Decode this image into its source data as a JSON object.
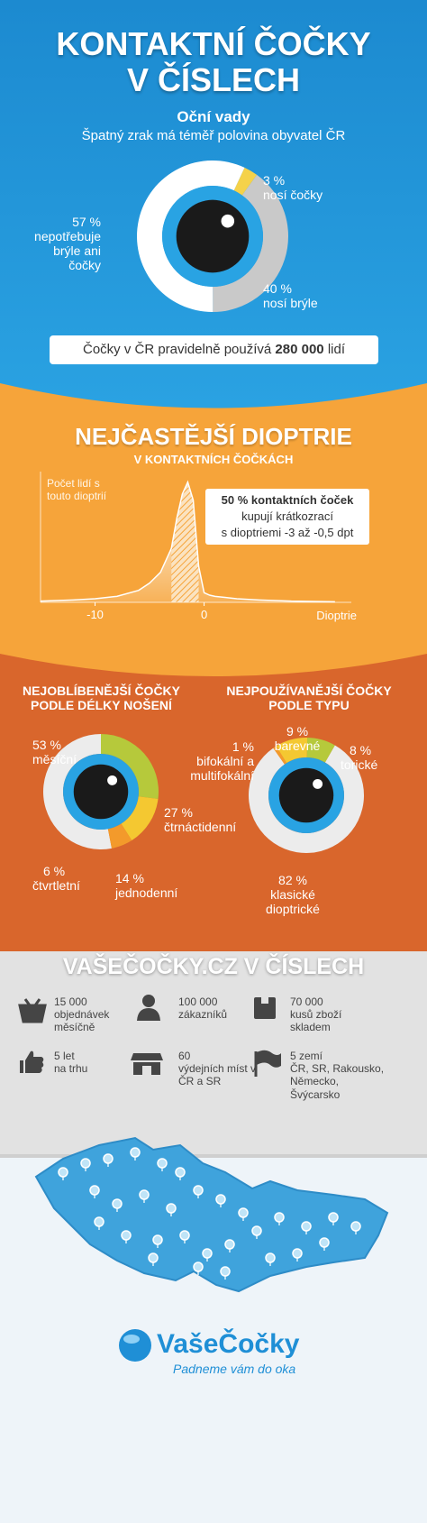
{
  "header": {
    "title_line1": "KONTAKTNÍ ČOČKY",
    "title_line2": "V ČÍSLECH"
  },
  "callout": {
    "before": "Čočky v ČR pravidelně používá",
    "number": "280 000",
    "after": "lidí"
  },
  "chart_data": [
    {
      "type": "pie",
      "title": "Oční vady",
      "subtitle": "Špatný zrak má téměř polovina obyvatel ČR",
      "categories": [
        "nosí čočky",
        "nosí brýle",
        "nepotřebuje brýle ani čočky"
      ],
      "values": [
        3,
        40,
        57
      ],
      "value_labels": [
        "3 %",
        "40 %",
        "57 %"
      ],
      "colors": [
        "#f5d24a",
        "#c9c9c9",
        "#ffffff"
      ]
    },
    {
      "type": "area",
      "title": "NEJČASTĚJŠÍ DIOPTRIE",
      "subtitle": "V KONTAKTNÍCH ČOČKÁCH",
      "x_label": "Dioptrie",
      "y_label": "Počet lidí s touto dioptrií",
      "x": [
        -15,
        -12,
        -10,
        -8,
        -6,
        -5,
        -4,
        -3,
        -2.5,
        -2,
        -1.5,
        -1,
        -0.5,
        0,
        0.5,
        1,
        2,
        3,
        5,
        8,
        12
      ],
      "values": [
        1,
        2,
        3,
        5,
        10,
        16,
        25,
        45,
        70,
        90,
        100,
        85,
        30,
        8,
        6,
        5,
        4,
        3,
        2,
        1,
        0.5
      ],
      "xlim": [
        -15,
        13.5
      ],
      "xticks": [
        -10,
        0
      ],
      "ylim": [
        0,
        105
      ],
      "highlight_range": [
        -3,
        -0.5
      ],
      "annotation": [
        "50 % kontaktních čoček",
        "kupují krátkozrací",
        "s dioptriemi -3 až -0,5 dpt"
      ]
    },
    {
      "type": "pie",
      "title": "NEJOBLÍBENĚJŠÍ ČOČKY PODLE DÉLKY NOŠENÍ",
      "categories": [
        "měsíční",
        "čtrnáctidenní",
        "jednodenní",
        "čtvrtletní"
      ],
      "values": [
        53,
        27,
        14,
        6
      ],
      "value_labels": [
        "53 %",
        "27 %",
        "14 %",
        "6 %"
      ],
      "colors": [
        "#ececec",
        "#b6c93b",
        "#f4c831",
        "#f39a2b"
      ]
    },
    {
      "type": "pie",
      "title": "NEJPOUŽÍVANĚJŠÍ ČOČKY PODLE TYPU",
      "categories": [
        "klasické dioptrické",
        "bifokální a multifokální",
        "barevné",
        "torické"
      ],
      "values": [
        82,
        1,
        9,
        8
      ],
      "value_labels": [
        "82 %",
        "1 %",
        "9 %",
        "8 %"
      ],
      "colors": [
        "#ececec",
        "#f39a2b",
        "#f4c831",
        "#b6c93b"
      ]
    }
  ],
  "stats": {
    "title": "VAŠEČOČKY.CZ V ČÍSLECH",
    "items": [
      {
        "value": "15 000",
        "label": "objednávek měsíčně"
      },
      {
        "value": "100 000",
        "label": "zákazníků"
      },
      {
        "value": "70 000",
        "label": "kusů zboží skladem"
      },
      {
        "value": "5 let",
        "label": "na trhu"
      },
      {
        "value": "60",
        "label": "výdejních míst v ČR a SR"
      },
      {
        "value": "5 zemí",
        "label": "ČR, SR, Rakousko, Německo, Švýcarsko"
      }
    ]
  },
  "footer": {
    "brand": "VašeČočky",
    "slogan": "Padneme vám do oka"
  }
}
